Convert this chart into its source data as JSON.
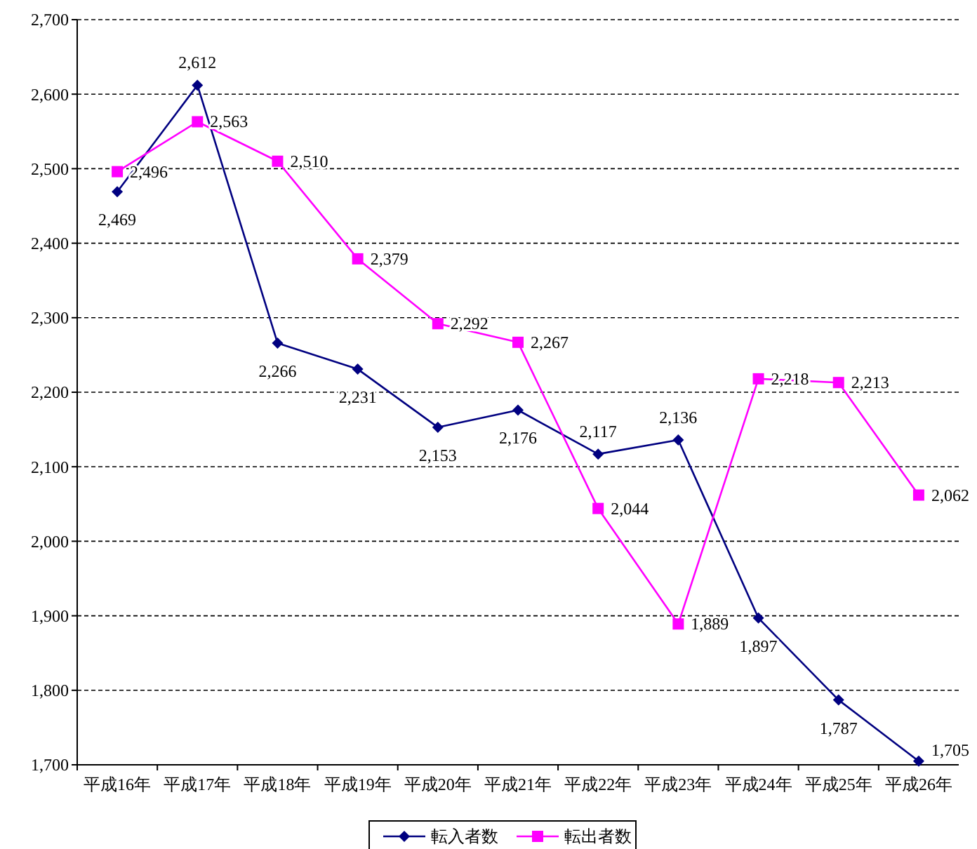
{
  "chart_data": {
    "type": "line",
    "categories": [
      "平成16年",
      "平成17年",
      "平成18年",
      "平成19年",
      "平成20年",
      "平成21年",
      "平成22年",
      "平成23年",
      "平成24年",
      "平成25年",
      "平成26年"
    ],
    "series": [
      {
        "name": "転入者数",
        "color": "#000080",
        "marker": "diamond",
        "values": [
          2469,
          2612,
          2266,
          2231,
          2153,
          2176,
          2117,
          2136,
          1897,
          1787,
          1705
        ],
        "value_labels": [
          "2,469",
          "2,612",
          "2,266",
          "2,231",
          "2,153",
          "2,176",
          "2,117",
          "2,136",
          "1,897",
          "1,787",
          "1,705"
        ]
      },
      {
        "name": "転出者数",
        "color": "#ff00ff",
        "marker": "square",
        "values": [
          2496,
          2563,
          2510,
          2379,
          2292,
          2267,
          2044,
          1889,
          2218,
          2213,
          2062
        ],
        "value_labels": [
          "2,496",
          "2,563",
          "2,510",
          "2,379",
          "2,292",
          "2,267",
          "2,044",
          "1,889",
          "2,218",
          "2,213",
          "2,062"
        ]
      }
    ],
    "ylim": [
      1700,
      2700
    ],
    "yticks": [
      {
        "value": 1700,
        "label": "1,700"
      },
      {
        "value": 1800,
        "label": "1,800"
      },
      {
        "value": 1900,
        "label": "1,900"
      },
      {
        "value": 2000,
        "label": "2,000"
      },
      {
        "value": 2100,
        "label": "2,100"
      },
      {
        "value": 2200,
        "label": "2,200"
      },
      {
        "value": 2300,
        "label": "2,300"
      },
      {
        "value": 2400,
        "label": "2,400"
      },
      {
        "value": 2500,
        "label": "2,500"
      },
      {
        "value": 2600,
        "label": "2,600"
      },
      {
        "value": 2700,
        "label": "2,700"
      }
    ],
    "grid": "y",
    "legend": "bottom",
    "line_style": "solid"
  }
}
